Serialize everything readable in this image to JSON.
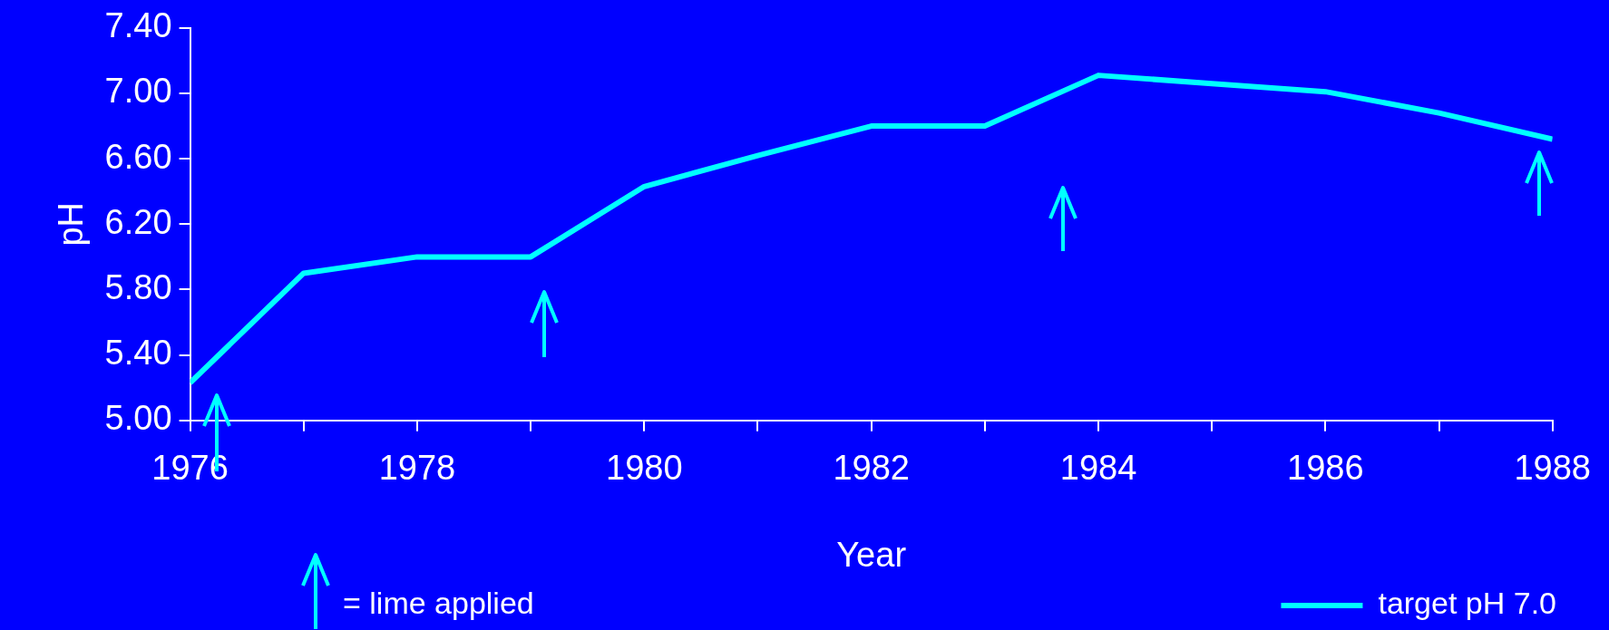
{
  "chart_data": {
    "type": "line",
    "xlabel": "Year",
    "ylabel": "pH",
    "x": [
      1976,
      1977,
      1978,
      1979,
      1980,
      1981,
      1982,
      1983,
      1984,
      1985,
      1986,
      1987,
      1988
    ],
    "series": [
      {
        "name": "target pH 7.0",
        "color": "#00ffff",
        "values": [
          5.23,
          5.9,
          6.0,
          6.0,
          6.43,
          6.62,
          6.8,
          6.8,
          7.11,
          7.06,
          7.01,
          6.88,
          6.72
        ]
      }
    ],
    "xlim": [
      1976,
      1988
    ],
    "xticks": [
      1976,
      {
        "value": 1977,
        "label": null
      },
      1978,
      {
        "value": 1979,
        "label": null
      },
      1980,
      {
        "value": 1981,
        "label": null
      },
      1982,
      {
        "value": 1983,
        "label": null
      },
      1984,
      {
        "value": 1985,
        "label": null
      },
      1986,
      {
        "value": 1987,
        "label": null
      },
      1988
    ],
    "ylim": [
      5,
      7.4
    ],
    "yticks": [
      {
        "value": 5,
        "label": "5.00"
      },
      {
        "value": 5.4,
        "label": "5.40"
      },
      {
        "value": 5.8,
        "label": "5.80"
      },
      {
        "value": 6.2,
        "label": "6.20"
      },
      {
        "value": 6.6,
        "label": "6.60"
      },
      {
        "value": 7,
        "label": "7.00"
      },
      {
        "value": 7.4,
        "label": "7.40"
      }
    ],
    "annotations": [
      "= lime applied"
    ],
    "grid": false,
    "legend": "bottom right"
  }
}
